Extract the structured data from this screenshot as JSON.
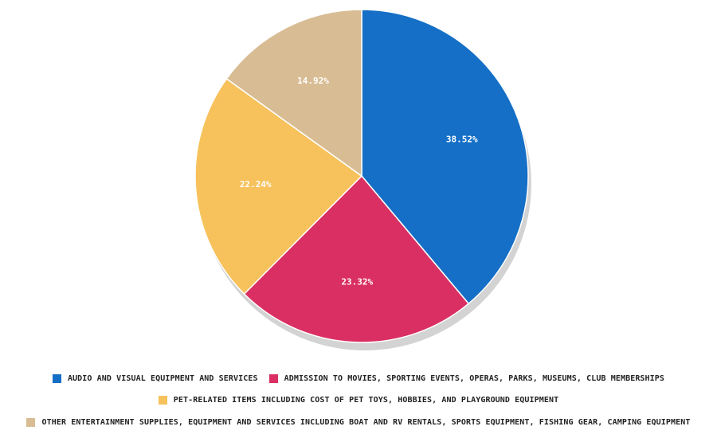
{
  "chart_data": {
    "type": "pie",
    "slices": [
      {
        "label": "AUDIO AND VISUAL EQUIPMENT AND SERVICES",
        "value": 38.52,
        "display": "38.52%",
        "color": "#156fc6"
      },
      {
        "label": "ADMISSION TO MOVIES, SPORTING EVENTS, OPERAS, PARKS, MUSEUMS, CLUB MEMBERSHIPS",
        "value": 23.32,
        "display": "23.32%",
        "color": "#da2f62"
      },
      {
        "label": "PET-RELATED ITEMS INCLUDING COST OF PET TOYS, HOBBIES, AND PLAYGROUND EQUIPMENT",
        "value": 22.24,
        "display": "22.24%",
        "color": "#f7c25c"
      },
      {
        "label": "OTHER ENTERTAINMENT SUPPLIES, EQUIPMENT AND SERVICES INCLUDING BOAT AND RV RENTALS, SPORTS EQUIPMENT, FISHING GEAR, CAMPING EQUIPMENT",
        "value": 14.92,
        "display": "14.92%",
        "color": "#d8bc93"
      }
    ],
    "legend_position": "bottom"
  },
  "legend": [
    {
      "label": "AUDIO AND VISUAL EQUIPMENT AND SERVICES",
      "color": "#156fc6"
    },
    {
      "label": "ADMISSION TO MOVIES, SPORTING EVENTS, OPERAS, PARKS, MUSEUMS, CLUB MEMBERSHIPS",
      "color": "#da2f62"
    },
    {
      "label": "PET-RELATED ITEMS INCLUDING COST OF PET TOYS, HOBBIES, AND PLAYGROUND EQUIPMENT",
      "color": "#f7c25c"
    },
    {
      "label": "OTHER ENTERTAINMENT SUPPLIES, EQUIPMENT AND SERVICES INCLUDING BOAT AND RV RENTALS, SPORTS EQUIPMENT, FISHING GEAR, CAMPING EQUIPMENT",
      "color": "#d8bc93"
    }
  ]
}
